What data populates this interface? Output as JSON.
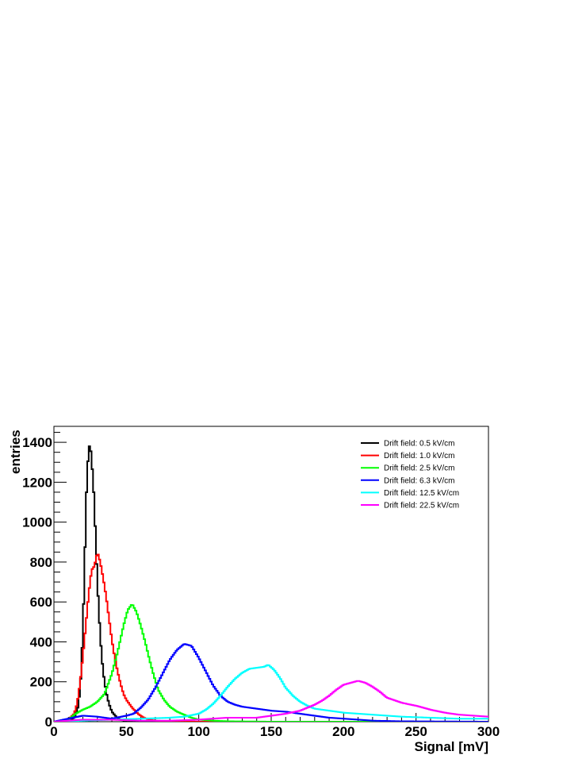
{
  "chart_data": {
    "type": "line",
    "title": "",
    "xlabel": "Signal [mV]",
    "ylabel": "entries",
    "xlim": [
      0,
      300
    ],
    "ylim": [
      0,
      1480
    ],
    "x_ticks": [
      0,
      50,
      100,
      150,
      200,
      250,
      300
    ],
    "y_ticks": [
      0,
      200,
      400,
      600,
      800,
      1000,
      1200,
      1400
    ],
    "x_tick_labels": [
      "0",
      "50",
      "100",
      "150",
      "200",
      "250",
      "300"
    ],
    "y_tick_labels": [
      "0",
      "200",
      "400",
      "600",
      "800",
      "1000",
      "1200",
      "1400"
    ],
    "grid": false,
    "legend_position": "top-right",
    "series": [
      {
        "name": "Drift field: 0.5 kV/cm",
        "color": "#000000",
        "x": [
          0,
          10,
          14,
          17,
          19,
          21,
          22,
          23,
          24,
          25,
          26,
          27,
          28,
          29,
          30,
          31,
          32,
          33,
          34,
          36,
          38,
          40,
          43,
          46,
          50,
          60,
          80,
          300
        ],
        "y": [
          0,
          2,
          20,
          80,
          260,
          700,
          1050,
          1250,
          1360,
          1400,
          1310,
          1220,
          1080,
          880,
          700,
          560,
          430,
          330,
          250,
          150,
          90,
          50,
          25,
          10,
          3,
          0,
          0,
          0
        ]
      },
      {
        "name": "Drift field: 1.0 kV/cm",
        "color": "#ff0000",
        "x": [
          0,
          10,
          14,
          16,
          18,
          20,
          22,
          24,
          26,
          28,
          30,
          32,
          34,
          36,
          38,
          40,
          42,
          44,
          46,
          48,
          50,
          54,
          58,
          62,
          66,
          70,
          80,
          100,
          300
        ],
        "y": [
          0,
          10,
          40,
          90,
          190,
          330,
          480,
          640,
          760,
          780,
          850,
          800,
          720,
          630,
          520,
          410,
          320,
          250,
          190,
          140,
          110,
          70,
          40,
          20,
          10,
          5,
          2,
          0,
          0
        ]
      },
      {
        "name": "Drift field: 2.5 kV/cm",
        "color": "#00ff00",
        "x": [
          0,
          10,
          15,
          20,
          25,
          30,
          35,
          40,
          44,
          48,
          51,
          54,
          57,
          60,
          63,
          66,
          69,
          72,
          76,
          80,
          85,
          90,
          95,
          100,
          110,
          120,
          150,
          300
        ],
        "y": [
          0,
          10,
          40,
          60,
          75,
          100,
          140,
          240,
          350,
          480,
          560,
          590,
          550,
          480,
          400,
          310,
          230,
          160,
          110,
          75,
          50,
          35,
          20,
          10,
          5,
          2,
          0,
          0
        ]
      },
      {
        "name": "Drift field: 6.3 kV/cm",
        "color": "#0000ff",
        "x": [
          0,
          10,
          20,
          30,
          40,
          50,
          55,
          60,
          65,
          70,
          75,
          80,
          85,
          90,
          95,
          100,
          105,
          110,
          115,
          120,
          125,
          130,
          140,
          150,
          160,
          170,
          180,
          190,
          200,
          220,
          240,
          300
        ],
        "y": [
          0,
          15,
          30,
          25,
          15,
          30,
          40,
          70,
          110,
          170,
          240,
          310,
          360,
          390,
          380,
          320,
          250,
          180,
          130,
          100,
          85,
          75,
          65,
          55,
          50,
          40,
          30,
          20,
          15,
          5,
          2,
          0
        ]
      },
      {
        "name": "Drift field: 12.5 kV/cm",
        "color": "#00ffff",
        "x": [
          0,
          20,
          40,
          60,
          80,
          90,
          100,
          105,
          110,
          115,
          120,
          125,
          130,
          135,
          140,
          145,
          148,
          152,
          156,
          160,
          165,
          170,
          175,
          180,
          190,
          200,
          220,
          240,
          260,
          280,
          300
        ],
        "y": [
          0,
          5,
          10,
          15,
          20,
          25,
          40,
          60,
          90,
          130,
          175,
          215,
          245,
          265,
          270,
          275,
          285,
          260,
          220,
          170,
          130,
          100,
          80,
          65,
          55,
          45,
          35,
          25,
          20,
          15,
          15
        ]
      },
      {
        "name": "Drift field: 22.5 kV/cm",
        "color": "#ff00ff",
        "x": [
          0,
          20,
          40,
          60,
          80,
          100,
          120,
          140,
          150,
          160,
          170,
          175,
          180,
          185,
          190,
          195,
          200,
          205,
          210,
          215,
          220,
          225,
          230,
          240,
          250,
          260,
          270,
          280,
          290,
          300
        ],
        "y": [
          0,
          10,
          10,
          5,
          5,
          10,
          20,
          20,
          30,
          40,
          55,
          70,
          85,
          105,
          130,
          160,
          185,
          195,
          205,
          195,
          175,
          150,
          120,
          95,
          80,
          60,
          45,
          35,
          30,
          25
        ]
      }
    ]
  }
}
